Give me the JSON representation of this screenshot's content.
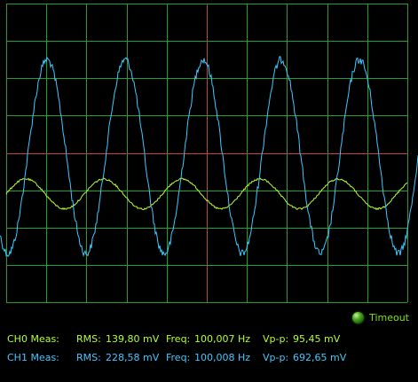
{
  "status": {
    "label": "Timeout",
    "led_color": "#3f9a18"
  },
  "channels": [
    {
      "name": "CH0 Meas:",
      "rms_label": "RMS:",
      "rms_value": "139,80 mV",
      "freq_label": "Freq:",
      "freq_value": "100,007 Hz",
      "vpp_label": "Vp-p:",
      "vpp_value": "95,45 mV",
      "color": "#b6ff33"
    },
    {
      "name": "CH1 Meas:",
      "rms_label": "RMS:",
      "rms_value": "228,58 mV",
      "freq_label": "Freq:",
      "freq_value": "100,008 Hz",
      "vpp_label": "Vp-p:",
      "vpp_value": "692,65 mV",
      "color": "#3fc9ff"
    }
  ],
  "scope": {
    "grid_color": "#1fa12a",
    "center_line_color": "#c2433a",
    "grid_divisions_x": 10,
    "grid_divisions_y": 8
  }
}
